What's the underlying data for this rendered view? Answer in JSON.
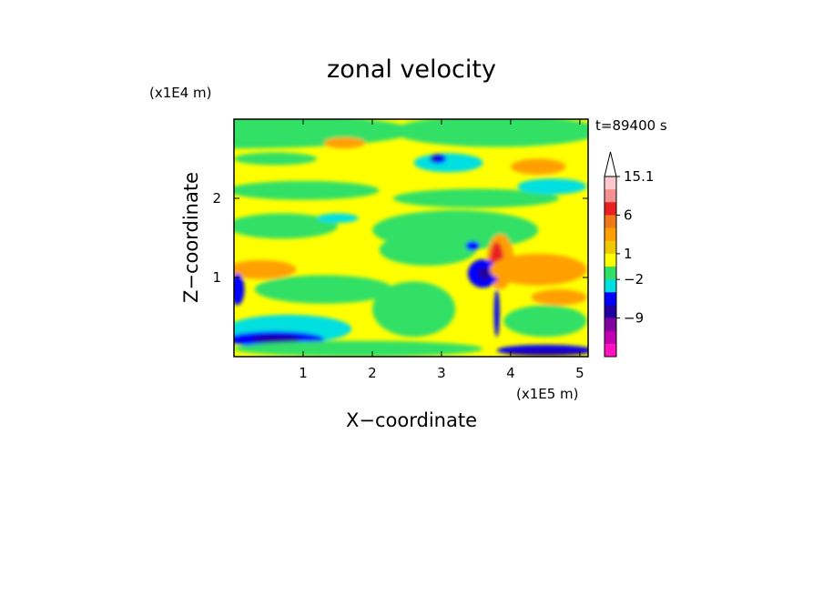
{
  "chart_data": {
    "type": "heatmap",
    "title": "zonal velocity",
    "xlabel": "X−coordinate",
    "ylabel": "Z−coordinate",
    "x_scale_label": "(x1E5 m)",
    "y_scale_label": "(x1E4 m)",
    "time_label": "t=89400 s",
    "xlim": [
      0,
      5.12
    ],
    "ylim": [
      0,
      3.0
    ],
    "x_ticks": [
      "1",
      "2",
      "3",
      "4",
      "5"
    ],
    "y_ticks": [
      "1",
      "2"
    ],
    "colorbar": {
      "labels": [
        "15.1",
        "6",
        "1",
        "−2",
        "−9"
      ],
      "levels": [
        {
          "color": "#ffc8cc"
        },
        {
          "color": "#f59090"
        },
        {
          "color": "#e82020"
        },
        {
          "color": "#f07818"
        },
        {
          "color": "#ffa000"
        },
        {
          "color": "#f0c800"
        },
        {
          "color": "#ffff00"
        },
        {
          "color": "#33e066"
        },
        {
          "color": "#00e0e0"
        },
        {
          "color": "#0000ff"
        },
        {
          "color": "#2000a0"
        },
        {
          "color": "#8000a0"
        },
        {
          "color": "#c000b0"
        },
        {
          "color": "#ff10c0"
        }
      ],
      "overflow_color": "#ffffff"
    },
    "field": {
      "background": "#ffff00",
      "regions": [
        {
          "x": 0.0,
          "z": 2.85,
          "rx": 2.6,
          "rz": 0.22,
          "color": "#33e066"
        },
        {
          "x": 3.8,
          "z": 2.85,
          "rx": 1.5,
          "rz": 0.2,
          "color": "#33e066"
        },
        {
          "x": 0.6,
          "z": 2.5,
          "rx": 0.6,
          "rz": 0.08,
          "color": "#33e066"
        },
        {
          "x": 3.1,
          "z": 2.45,
          "rx": 0.5,
          "rz": 0.12,
          "color": "#00e0e0"
        },
        {
          "x": 2.95,
          "z": 2.5,
          "rx": 0.12,
          "rz": 0.06,
          "color": "#0000ff"
        },
        {
          "x": 2.9,
          "z": 2.5,
          "rx": 0.05,
          "rz": 0.03,
          "color": "#2000a0"
        },
        {
          "x": 1.6,
          "z": 2.7,
          "rx": 0.3,
          "rz": 0.07,
          "color": "#ffa000"
        },
        {
          "x": 4.4,
          "z": 2.4,
          "rx": 0.4,
          "rz": 0.1,
          "color": "#ffa000"
        },
        {
          "x": 1.0,
          "z": 2.1,
          "rx": 1.1,
          "rz": 0.12,
          "color": "#33e066"
        },
        {
          "x": 3.5,
          "z": 2.0,
          "rx": 1.2,
          "rz": 0.12,
          "color": "#33e066"
        },
        {
          "x": 4.6,
          "z": 2.15,
          "rx": 0.5,
          "rz": 0.1,
          "color": "#00e0e0"
        },
        {
          "x": 0.7,
          "z": 1.65,
          "rx": 0.8,
          "rz": 0.16,
          "color": "#33e066"
        },
        {
          "x": 3.2,
          "z": 1.6,
          "rx": 1.2,
          "rz": 0.25,
          "color": "#33e066"
        },
        {
          "x": 1.5,
          "z": 1.75,
          "rx": 0.3,
          "rz": 0.06,
          "color": "#00e0e0"
        },
        {
          "x": 2.8,
          "z": 1.35,
          "rx": 0.7,
          "rz": 0.2,
          "color": "#33e066"
        },
        {
          "x": 3.85,
          "z": 1.2,
          "rx": 0.2,
          "rz": 0.35,
          "color": "#ffa000"
        },
        {
          "x": 3.8,
          "z": 1.2,
          "rx": 0.1,
          "rz": 0.25,
          "color": "#e82020"
        },
        {
          "x": 3.6,
          "z": 1.05,
          "rx": 0.22,
          "rz": 0.18,
          "color": "#0000ff"
        },
        {
          "x": 3.62,
          "z": 1.05,
          "rx": 0.1,
          "rz": 0.08,
          "color": "#2000a0"
        },
        {
          "x": 3.45,
          "z": 1.4,
          "rx": 0.1,
          "rz": 0.06,
          "color": "#0000ff"
        },
        {
          "x": 4.4,
          "z": 1.1,
          "rx": 0.7,
          "rz": 0.2,
          "color": "#ffa000"
        },
        {
          "x": 0.4,
          "z": 1.1,
          "rx": 0.5,
          "rz": 0.12,
          "color": "#ffa000"
        },
        {
          "x": 1.3,
          "z": 0.85,
          "rx": 1.0,
          "rz": 0.18,
          "color": "#33e066"
        },
        {
          "x": 2.6,
          "z": 0.6,
          "rx": 0.6,
          "rz": 0.35,
          "color": "#33e066"
        },
        {
          "x": 4.5,
          "z": 0.45,
          "rx": 0.6,
          "rz": 0.2,
          "color": "#33e066"
        },
        {
          "x": 4.7,
          "z": 0.75,
          "rx": 0.4,
          "rz": 0.1,
          "color": "#ffa000"
        },
        {
          "x": 0.8,
          "z": 0.35,
          "rx": 0.9,
          "rz": 0.18,
          "color": "#00e0e0"
        },
        {
          "x": 0.6,
          "z": 0.22,
          "rx": 0.7,
          "rz": 0.1,
          "color": "#0000ff"
        },
        {
          "x": 0.6,
          "z": 0.22,
          "rx": 0.35,
          "rz": 0.05,
          "color": "#2000a0"
        },
        {
          "x": 0.05,
          "z": 0.85,
          "rx": 0.1,
          "rz": 0.2,
          "color": "#0000ff"
        },
        {
          "x": 3.8,
          "z": 0.55,
          "rx": 0.04,
          "rz": 0.3,
          "color": "#0000ff"
        },
        {
          "x": 4.5,
          "z": 0.08,
          "rx": 0.7,
          "rz": 0.07,
          "color": "#0000ff"
        },
        {
          "x": 4.5,
          "z": 0.05,
          "rx": 0.6,
          "rz": 0.04,
          "color": "#2000a0"
        },
        {
          "x": 1.8,
          "z": 0.1,
          "rx": 1.8,
          "rz": 0.1,
          "color": "#33e066"
        }
      ]
    }
  }
}
